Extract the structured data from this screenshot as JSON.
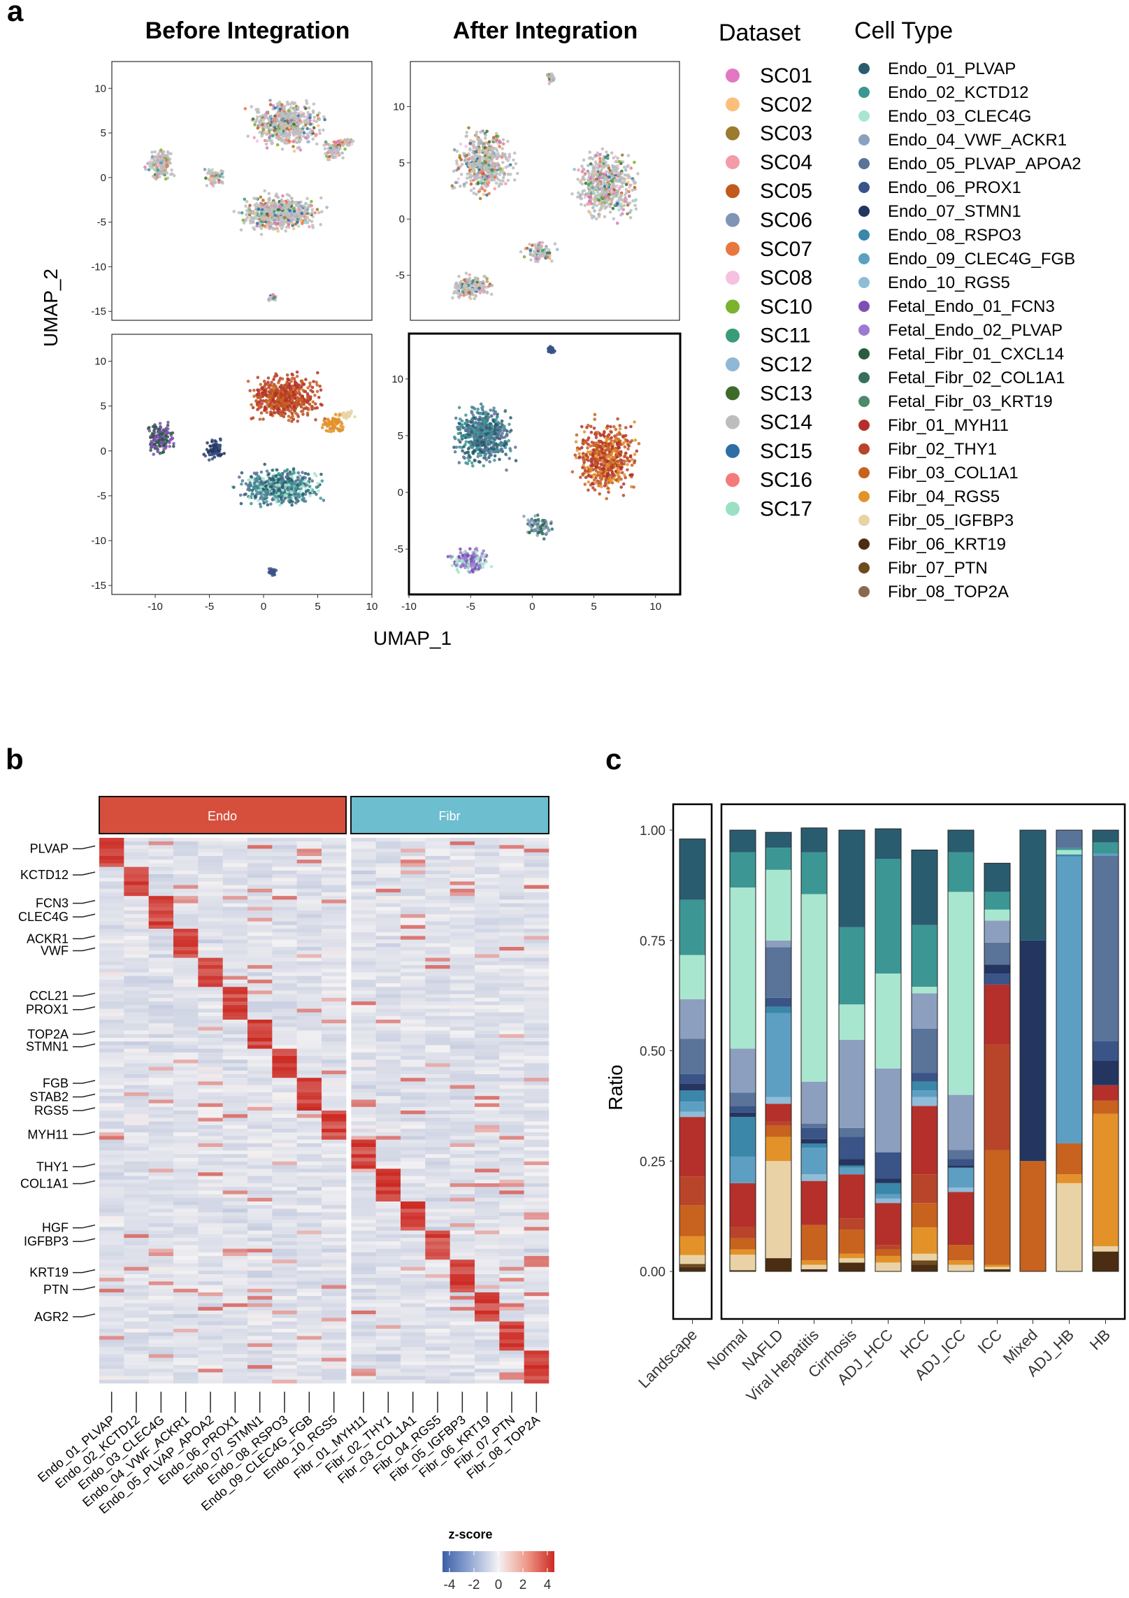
{
  "panels": {
    "a": {
      "label": "a",
      "title_before": "Before Integration",
      "title_after": "After Integration",
      "xlabel": "UMAP_1",
      "ylabel": "UMAP_2",
      "legend_dataset_title": "Dataset",
      "legend_celltype_title": "Cell Type"
    },
    "b": {
      "label": "b",
      "groups": [
        {
          "name": "Endo",
          "color": "#d64f3c"
        },
        {
          "name": "Fibr",
          "color": "#6dbecf"
        }
      ],
      "colorbar_title": "z-score",
      "colorbar_ticks": [
        "-4",
        "-2",
        "0",
        "2",
        "4"
      ]
    },
    "c": {
      "label": "c"
    }
  },
  "datasets": [
    {
      "name": "SC01",
      "color": "#e377c2"
    },
    {
      "name": "SC02",
      "color": "#fbbf7a"
    },
    {
      "name": "SC03",
      "color": "#9c7a2e"
    },
    {
      "name": "SC04",
      "color": "#f49aa8"
    },
    {
      "name": "SC05",
      "color": "#c25a1b"
    },
    {
      "name": "SC06",
      "color": "#8095b5"
    },
    {
      "name": "SC07",
      "color": "#e8773f"
    },
    {
      "name": "SC08",
      "color": "#f6c1e1"
    },
    {
      "name": "SC10",
      "color": "#7bb32e"
    },
    {
      "name": "SC11",
      "color": "#3a9b77"
    },
    {
      "name": "SC12",
      "color": "#8fb8d6"
    },
    {
      "name": "SC13",
      "color": "#3e6b2a"
    },
    {
      "name": "SC14",
      "color": "#bdbdbd"
    },
    {
      "name": "SC15",
      "color": "#2f6ea5"
    },
    {
      "name": "SC16",
      "color": "#f47b7b"
    },
    {
      "name": "SC17",
      "color": "#9be0c5"
    }
  ],
  "cell_types": [
    {
      "name": "Endo_01_PLVAP",
      "color": "#2a5c70"
    },
    {
      "name": "Endo_02_KCTD12",
      "color": "#3c9694"
    },
    {
      "name": "Endo_03_CLEC4G",
      "color": "#a9e6cf"
    },
    {
      "name": "Endo_04_VWF_ACKR1",
      "color": "#8c9fbf"
    },
    {
      "name": "Endo_05_PLVAP_APOA2",
      "color": "#5a7399"
    },
    {
      "name": "Endo_06_PROX1",
      "color": "#3a5487"
    },
    {
      "name": "Endo_07_STMN1",
      "color": "#243560"
    },
    {
      "name": "Endo_08_RSPO3",
      "color": "#3a87a9"
    },
    {
      "name": "Endo_09_CLEC4G_FGB",
      "color": "#5d9fc3"
    },
    {
      "name": "Endo_10_RGS5",
      "color": "#8fbcd8"
    },
    {
      "name": "Fetal_Endo_01_FCN3",
      "color": "#7e4fb3"
    },
    {
      "name": "Fetal_Endo_02_PLVAP",
      "color": "#9a7bd1"
    },
    {
      "name": "Fetal_Fibr_01_CXCL14",
      "color": "#2a5c3e"
    },
    {
      "name": "Fetal_Fibr_02_COL1A1",
      "color": "#34705a"
    },
    {
      "name": "Fetal_Fibr_03_KRT19",
      "color": "#4b8a6b"
    },
    {
      "name": "Fibr_01_MYH11",
      "color": "#b5302a"
    },
    {
      "name": "Fibr_02_THY1",
      "color": "#b8452a"
    },
    {
      "name": "Fibr_03_COL1A1",
      "color": "#c7621f"
    },
    {
      "name": "Fibr_04_RGS5",
      "color": "#e3922a"
    },
    {
      "name": "Fibr_05_IGFBP3",
      "color": "#e9d3a6"
    },
    {
      "name": "Fibr_06_KRT19",
      "color": "#4a2d12"
    },
    {
      "name": "Fibr_07_PTN",
      "color": "#6e4a1e"
    },
    {
      "name": "Fibr_08_TOP2A",
      "color": "#8a6a4e"
    }
  ],
  "chart_data": [
    {
      "type": "scatter",
      "panel": "a",
      "title": "Before Integration",
      "color_by": "Dataset",
      "xlim": [
        -14,
        10
      ],
      "ylim": [
        -16,
        13
      ],
      "x_ticks": [],
      "y_ticks": [
        -15,
        -10,
        -5,
        0,
        5,
        10
      ]
    },
    {
      "type": "scatter",
      "panel": "a",
      "title": "After Integration",
      "color_by": "Dataset",
      "xlim": [
        -10,
        12
      ],
      "ylim": [
        -9,
        14
      ],
      "x_ticks": [],
      "y_ticks": [
        -5,
        0,
        5,
        10
      ]
    },
    {
      "type": "scatter",
      "panel": "a",
      "title": "",
      "color_by": "Cell Type",
      "xlabel": "",
      "xlim": [
        -14,
        10
      ],
      "ylim": [
        -16,
        13
      ],
      "x_ticks": [
        -10,
        -5,
        0,
        5,
        10
      ],
      "y_ticks": [
        -15,
        -10,
        -5,
        0,
        5,
        10
      ]
    },
    {
      "type": "scatter",
      "panel": "a",
      "title": "",
      "color_by": "Cell Type",
      "xlim": [
        -10,
        12
      ],
      "ylim": [
        -9,
        14
      ],
      "x_ticks": [
        -10,
        -5,
        0,
        5,
        10
      ],
      "y_ticks": [
        -5,
        0,
        5,
        10
      ]
    },
    {
      "type": "heatmap",
      "panel": "b",
      "columns": [
        "Endo_01_PLVAP",
        "Endo_02_KCTD12",
        "Endo_03_CLEC4G",
        "Endo_04_VWF_ACKR1",
        "Endo_05_PLVAP_APOA2",
        "Endo_06_PROX1",
        "Endo_07_STMN1",
        "Endo_08_RSPO3",
        "Endo_09_CLEC4G_FGB",
        "Endo_10_RGS5",
        "Fibr_01_MYH11",
        "Fibr_02_THY1",
        "Fibr_03_COL1A1",
        "Fibr_04_RGS5",
        "Fibr_05_IGFBP3",
        "Fibr_06_KRT19",
        "Fibr_07_PTN",
        "Fibr_08_TOP2A"
      ],
      "column_groups": [
        "Endo",
        "Endo",
        "Endo",
        "Endo",
        "Endo",
        "Endo",
        "Endo",
        "Endo",
        "Endo",
        "Endo",
        "Fibr",
        "Fibr",
        "Fibr",
        "Fibr",
        "Fibr",
        "Fibr",
        "Fibr",
        "Fibr"
      ],
      "gene_labels": [
        {
          "gene": "PLVAP",
          "row": 0.02
        },
        {
          "gene": "KCTD12",
          "row": 0.068
        },
        {
          "gene": "FCN3",
          "row": 0.12
        },
        {
          "gene": "CLEC4G",
          "row": 0.145
        },
        {
          "gene": "ACKR1",
          "row": 0.185
        },
        {
          "gene": "VWF",
          "row": 0.207
        },
        {
          "gene": "CCL21",
          "row": 0.29
        },
        {
          "gene": "PROX1",
          "row": 0.315
        },
        {
          "gene": "TOP2A",
          "row": 0.36
        },
        {
          "gene": "STMN1",
          "row": 0.383
        },
        {
          "gene": "FGB",
          "row": 0.45
        },
        {
          "gene": "STAB2",
          "row": 0.475
        },
        {
          "gene": "RGS5",
          "row": 0.5
        },
        {
          "gene": "MYH11",
          "row": 0.544
        },
        {
          "gene": "THY1",
          "row": 0.603
        },
        {
          "gene": "COL1A1",
          "row": 0.634
        },
        {
          "gene": "HGF",
          "row": 0.715
        },
        {
          "gene": "IGFBP3",
          "row": 0.74
        },
        {
          "gene": "KRT19",
          "row": 0.797
        },
        {
          "gene": "PTN",
          "row": 0.828
        },
        {
          "gene": "AGR2",
          "row": 0.878
        }
      ],
      "zlim": [
        -4,
        4
      ],
      "legend": "z-score"
    },
    {
      "type": "bar",
      "panel": "c",
      "stacked": true,
      "ylabel": "Ratio",
      "ylim": [
        0,
        1
      ],
      "y_ticks": [
        "0.00",
        "0.25",
        "0.50",
        "0.75",
        "1.00"
      ],
      "categories": [
        "Landscape",
        "Normal",
        "NAFLD",
        "Viral Hepatitis",
        "Cirrhosis",
        "ADJ_HCC",
        "HCC",
        "ADJ_ICC",
        "ICC",
        "Mixed",
        "ADJ_HB",
        "HB"
      ],
      "segment_order": "bottom_to_top",
      "stacks": [
        [
          [
            "Fibr_06_KRT19",
            0.01
          ],
          [
            "Fibr_07_PTN",
            0.007
          ],
          [
            "Fibr_05_IGFBP3",
            0.02
          ],
          [
            "Fibr_04_RGS5",
            0.043
          ],
          [
            "Fibr_03_COL1A1",
            0.07
          ],
          [
            "Fibr_02_THY1",
            0.065
          ],
          [
            "Fibr_01_MYH11",
            0.135
          ],
          [
            "Endo_10_RGS5",
            0.012
          ],
          [
            "Endo_09_CLEC4G_FGB",
            0.023
          ],
          [
            "Endo_08_RSPO3",
            0.025
          ],
          [
            "Endo_07_STMN1",
            0.016
          ],
          [
            "Endo_06_PROX1",
            0.021
          ],
          [
            "Endo_05_PLVAP_APOA2",
            0.08
          ],
          [
            "Endo_04_VWF_ACKR1",
            0.09
          ],
          [
            "Endo_03_CLEC4G",
            0.1
          ],
          [
            "Endo_02_KCTD12",
            0.125
          ],
          [
            "Endo_01_PLVAP",
            0.138
          ]
        ],
        [
          [
            "Fibr_07_PTN",
            0.003
          ],
          [
            "Fibr_05_IGFBP3",
            0.035
          ],
          [
            "Fibr_04_RGS5",
            0.012
          ],
          [
            "Fibr_03_COL1A1",
            0.025
          ],
          [
            "Fibr_02_THY1",
            0.025
          ],
          [
            "Fibr_01_MYH11",
            0.1
          ],
          [
            "Endo_09_CLEC4G_FGB",
            0.06
          ],
          [
            "Endo_08_RSPO3",
            0.09
          ],
          [
            "Endo_07_STMN1",
            0.01
          ],
          [
            "Endo_06_PROX1",
            0.015
          ],
          [
            "Endo_05_PLVAP_APOA2",
            0.03
          ],
          [
            "Endo_04_VWF_ACKR1",
            0.1
          ],
          [
            "Endo_03_CLEC4G",
            0.365
          ],
          [
            "Endo_02_KCTD12",
            0.08
          ],
          [
            "Endo_01_PLVAP",
            0.05
          ]
        ],
        [
          [
            "Fibr_06_KRT19",
            0.03
          ],
          [
            "Fibr_05_IGFBP3",
            0.22
          ],
          [
            "Fibr_04_RGS5",
            0.055
          ],
          [
            "Fibr_03_COL1A1",
            0.025
          ],
          [
            "Fibr_02_THY1",
            0.01
          ],
          [
            "Fibr_01_MYH11",
            0.04
          ],
          [
            "Endo_10_RGS5",
            0.015
          ],
          [
            "Endo_09_CLEC4G_FGB",
            0.19
          ],
          [
            "Endo_08_RSPO3",
            0.015
          ],
          [
            "Endo_06_PROX1",
            0.02
          ],
          [
            "Endo_05_PLVAP_APOA2",
            0.115
          ],
          [
            "Endo_04_VWF_ACKR1",
            0.015
          ],
          [
            "Endo_03_CLEC4G",
            0.16
          ],
          [
            "Endo_02_KCTD12",
            0.05
          ],
          [
            "Endo_01_PLVAP",
            0.035
          ]
        ],
        [
          [
            "Fibr_06_KRT19",
            0.005
          ],
          [
            "Fibr_05_IGFBP3",
            0.01
          ],
          [
            "Fibr_04_RGS5",
            0.01
          ],
          [
            "Fibr_03_COL1A1",
            0.08
          ],
          [
            "Fibr_01_MYH11",
            0.1
          ],
          [
            "Endo_10_RGS5",
            0.015
          ],
          [
            "Endo_09_CLEC4G_FGB",
            0.06
          ],
          [
            "Endo_08_RSPO3",
            0.01
          ],
          [
            "Endo_07_STMN1",
            0.01
          ],
          [
            "Endo_06_PROX1",
            0.025
          ],
          [
            "Endo_05_PLVAP_APOA2",
            0.01
          ],
          [
            "Endo_04_VWF_ACKR1",
            0.095
          ],
          [
            "Endo_03_CLEC4G",
            0.425
          ],
          [
            "Endo_02_KCTD12",
            0.095
          ],
          [
            "Endo_01_PLVAP",
            0.055
          ]
        ],
        [
          [
            "Fibr_06_KRT19",
            0.02
          ],
          [
            "Fibr_05_IGFBP3",
            0.01
          ],
          [
            "Fibr_04_RGS5",
            0.01
          ],
          [
            "Fibr_03_COL1A1",
            0.055
          ],
          [
            "Fibr_02_THY1",
            0.025
          ],
          [
            "Fibr_01_MYH11",
            0.1
          ],
          [
            "Endo_09_CLEC4G_FGB",
            0.015
          ],
          [
            "Endo_08_RSPO3",
            0.005
          ],
          [
            "Endo_07_STMN1",
            0.015
          ],
          [
            "Endo_06_PROX1",
            0.05
          ],
          [
            "Endo_05_PLVAP_APOA2",
            0.02
          ],
          [
            "Endo_04_VWF_ACKR1",
            0.2
          ],
          [
            "Endo_03_CLEC4G",
            0.08
          ],
          [
            "Endo_02_KCTD12",
            0.175
          ],
          [
            "Endo_01_PLVAP",
            0.22
          ]
        ],
        [
          [
            "Fibr_05_IGFBP3",
            0.02
          ],
          [
            "Fibr_04_RGS5",
            0.015
          ],
          [
            "Fibr_03_COL1A1",
            0.015
          ],
          [
            "Fibr_02_THY1",
            0.01
          ],
          [
            "Fibr_01_MYH11",
            0.095
          ],
          [
            "Endo_10_RGS5",
            0.01
          ],
          [
            "Endo_09_CLEC4G_FGB",
            0.01
          ],
          [
            "Endo_08_RSPO3",
            0.025
          ],
          [
            "Endo_07_STMN1",
            0.01
          ],
          [
            "Endo_06_PROX1",
            0.06
          ],
          [
            "Endo_04_VWF_ACKR1",
            0.19
          ],
          [
            "Endo_03_CLEC4G",
            0.215
          ],
          [
            "Endo_02_KCTD12",
            0.26
          ],
          [
            "Endo_01_PLVAP",
            0.068
          ]
        ],
        [
          [
            "Fibr_06_KRT19",
            0.015
          ],
          [
            "Fibr_07_PTN",
            0.01
          ],
          [
            "Fibr_05_IGFBP3",
            0.015
          ],
          [
            "Fibr_04_RGS5",
            0.06
          ],
          [
            "Fibr_03_COL1A1",
            0.055
          ],
          [
            "Fibr_02_THY1",
            0.065
          ],
          [
            "Fibr_01_MYH11",
            0.155
          ],
          [
            "Endo_10_RGS5",
            0.02
          ],
          [
            "Endo_09_CLEC4G_FGB",
            0.015
          ],
          [
            "Endo_08_RSPO3",
            0.02
          ],
          [
            "Endo_06_PROX1",
            0.02
          ],
          [
            "Endo_05_PLVAP_APOA2",
            0.1
          ],
          [
            "Endo_04_VWF_ACKR1",
            0.08
          ],
          [
            "Endo_03_CLEC4G",
            0.015
          ],
          [
            "Endo_02_KCTD12",
            0.14
          ],
          [
            "Endo_01_PLVAP",
            0.17
          ]
        ],
        [
          [
            "Fibr_05_IGFBP3",
            0.015
          ],
          [
            "Fibr_04_RGS5",
            0.01
          ],
          [
            "Fibr_03_COL1A1",
            0.035
          ],
          [
            "Fibr_01_MYH11",
            0.12
          ],
          [
            "Endo_10_RGS5",
            0.01
          ],
          [
            "Endo_09_CLEC4G_FGB",
            0.045
          ],
          [
            "Endo_07_STMN1",
            0.005
          ],
          [
            "Endo_06_PROX1",
            0.015
          ],
          [
            "Endo_05_PLVAP_APOA2",
            0.02
          ],
          [
            "Endo_04_VWF_ACKR1",
            0.125
          ],
          [
            "Endo_03_CLEC4G",
            0.46
          ],
          [
            "Endo_02_KCTD12",
            0.09
          ],
          [
            "Endo_01_PLVAP",
            0.05
          ]
        ],
        [
          [
            "Fibr_06_KRT19",
            0.005
          ],
          [
            "Fibr_05_IGFBP3",
            0.005
          ],
          [
            "Fibr_04_RGS5",
            0.005
          ],
          [
            "Fibr_03_COL1A1",
            0.26
          ],
          [
            "Fibr_02_THY1",
            0.24
          ],
          [
            "Fibr_01_MYH11",
            0.135
          ],
          [
            "Endo_06_PROX1",
            0.025
          ],
          [
            "Endo_07_STMN1",
            0.02
          ],
          [
            "Endo_05_PLVAP_APOA2",
            0.05
          ],
          [
            "Endo_04_VWF_ACKR1",
            0.05
          ],
          [
            "Endo_03_CLEC4G",
            0.025
          ],
          [
            "Endo_02_KCTD12",
            0.04
          ],
          [
            "Endo_01_PLVAP",
            0.065
          ]
        ],
        [
          [
            "Fibr_03_COL1A1",
            0.25
          ],
          [
            "Endo_07_STMN1",
            0.5
          ],
          [
            "Endo_01_PLVAP",
            0.25
          ]
        ],
        [
          [
            "Fibr_05_IGFBP3",
            0.2
          ],
          [
            "Fibr_04_RGS5",
            0.02
          ],
          [
            "Fibr_03_COL1A1",
            0.07
          ],
          [
            "Endo_09_CLEC4G_FGB",
            0.65
          ],
          [
            "Endo_08_RSPO3",
            0.005
          ],
          [
            "Endo_03_CLEC4G",
            0.01
          ],
          [
            "Endo_02_KCTD12",
            0.005
          ],
          [
            "Endo_05_PLVAP_APOA2",
            0.04
          ]
        ],
        [
          [
            "Fibr_06_KRT19",
            0.045
          ],
          [
            "Fibr_05_IGFBP3",
            0.012
          ],
          [
            "Fibr_04_RGS5",
            0.3
          ],
          [
            "Fibr_03_COL1A1",
            0.03
          ],
          [
            "Fibr_01_MYH11",
            0.035
          ],
          [
            "Endo_07_STMN1",
            0.055
          ],
          [
            "Endo_06_PROX1",
            0.045
          ],
          [
            "Endo_05_PLVAP_APOA2",
            0.42
          ],
          [
            "Endo_09_CLEC4G_FGB",
            0.005
          ],
          [
            "Endo_02_KCTD12",
            0.025
          ],
          [
            "Endo_01_PLVAP",
            0.028
          ]
        ]
      ]
    }
  ]
}
